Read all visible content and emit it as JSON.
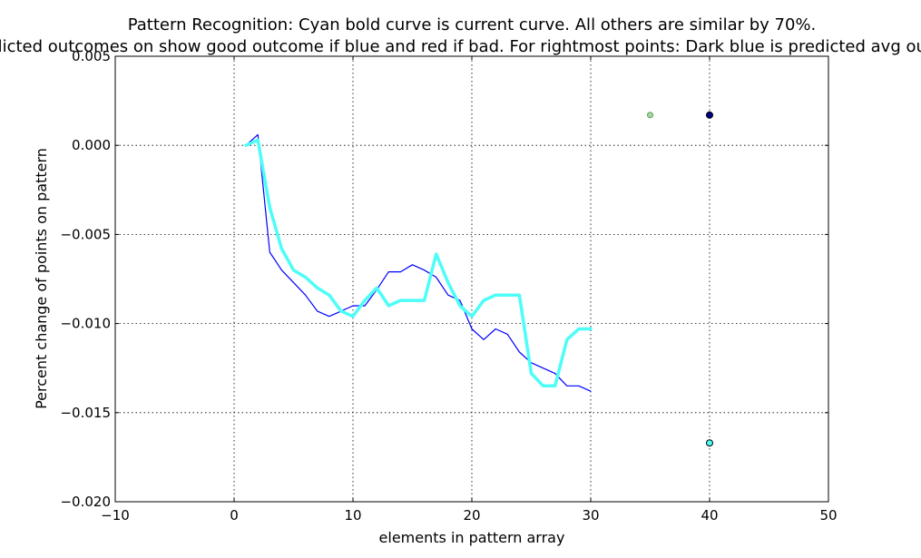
{
  "chart_data": {
    "type": "line",
    "title_lines": [
      "Pattern Recognition: Cyan bold curve is current curve. All others are similar by 70%.",
      "Predicted outcomes on show good outcome if blue and red if bad. For rightmost points: Dark blue is predicted avg outcome"
    ],
    "xlabel": "elements in pattern array",
    "ylabel": "Percent change of points on pattern",
    "xlim": [
      -10,
      50
    ],
    "ylim": [
      -0.02,
      0.005
    ],
    "xticks": [
      -10,
      0,
      10,
      20,
      30,
      40,
      50
    ],
    "xtick_labels": [
      "−10",
      "0",
      "10",
      "20",
      "30",
      "40",
      "50"
    ],
    "yticks": [
      0.005,
      0.0,
      -0.005,
      -0.01,
      -0.015,
      -0.02
    ],
    "ytick_labels": [
      "0.005",
      "0.000",
      "−0.005",
      "−0.010",
      "−0.015",
      "−0.020"
    ],
    "grid": true,
    "series": [
      {
        "color": "#0000ff",
        "width": 1.2,
        "x": [
          1,
          2,
          3,
          4,
          5,
          6,
          7,
          8,
          9,
          10,
          11,
          12,
          13,
          14,
          15,
          16,
          17,
          18,
          19,
          20,
          21,
          22,
          23,
          24,
          25,
          26,
          27,
          28,
          29,
          30
        ],
        "y": [
          0.0,
          0.0006,
          -0.006,
          -0.007,
          -0.0077,
          -0.0084,
          -0.0093,
          -0.0096,
          -0.0093,
          -0.009,
          -0.009,
          -0.0081,
          -0.0071,
          -0.0071,
          -0.0067,
          -0.007,
          -0.0074,
          -0.0084,
          -0.0087,
          -0.0103,
          -0.0109,
          -0.0103,
          -0.0106,
          -0.0116,
          -0.0122,
          -0.0125,
          -0.0128,
          -0.0135,
          -0.0135,
          -0.0138
        ]
      },
      {
        "color": "#4dfdf8",
        "width": 3.5,
        "x": [
          1,
          2,
          3,
          4,
          5,
          6,
          7,
          8,
          9,
          10,
          11,
          12,
          13,
          14,
          15,
          16,
          17,
          18,
          19,
          20,
          21,
          22,
          23,
          24,
          25,
          26,
          27,
          28,
          29,
          30
        ],
        "y": [
          0.0,
          0.0003,
          -0.0035,
          -0.0058,
          -0.007,
          -0.0074,
          -0.008,
          -0.0084,
          -0.0093,
          -0.0096,
          -0.0087,
          -0.008,
          -0.009,
          -0.0087,
          -0.0087,
          -0.0087,
          -0.0061,
          -0.0077,
          -0.009,
          -0.0096,
          -0.0087,
          -0.0084,
          -0.0084,
          -0.0084,
          -0.0128,
          -0.0135,
          -0.0135,
          -0.0109,
          -0.0103,
          -0.0103
        ]
      }
    ],
    "points": [
      {
        "x": 35,
        "y": 0.0017,
        "fill": "#a8d8a0",
        "stroke": "#5a9a55",
        "r": 3
      },
      {
        "x": 40,
        "y": 0.0017,
        "fill": "#00008b",
        "stroke": "#000000",
        "r": 3.5
      },
      {
        "x": 40,
        "y": -0.0167,
        "fill": "#4dfdf8",
        "stroke": "#000000",
        "r": 3.5
      }
    ]
  }
}
